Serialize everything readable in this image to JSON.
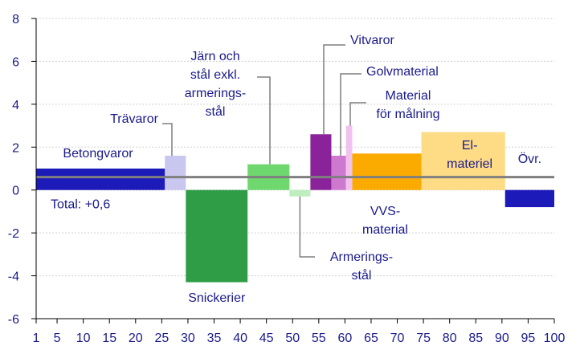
{
  "chart_data": {
    "type": "bar",
    "variable_width": true,
    "xlim": [
      1,
      100
    ],
    "ylim": [
      -6,
      8
    ],
    "x_ticks": [
      1,
      5,
      10,
      15,
      20,
      25,
      30,
      35,
      40,
      45,
      50,
      55,
      60,
      65,
      70,
      75,
      80,
      85,
      90,
      95,
      100
    ],
    "y_ticks": [
      -6,
      -4,
      -2,
      0,
      2,
      4,
      6,
      8
    ],
    "total_line": {
      "value": 0.6,
      "label": "Total: +0,6",
      "color": "#7f7f7f"
    },
    "series": [
      {
        "name": "Betongvaror",
        "lines": [
          "Betongvaror"
        ],
        "x_start": 1,
        "x_end": 25.6,
        "value": 1.0,
        "color": "#1c1ab8"
      },
      {
        "name": "Trävaror",
        "lines": [
          "Trävaror"
        ],
        "x_start": 25.6,
        "x_end": 29.6,
        "value": 1.6,
        "color": "#c9c6f0"
      },
      {
        "name": "Snickerier",
        "lines": [
          "Snickerier"
        ],
        "x_start": 29.6,
        "x_end": 41.4,
        "value": -4.3,
        "color": "#2f9c46"
      },
      {
        "name": "Järn och stål exkl. armeringsstål",
        "lines": [
          "Järn och",
          "stål exkl.",
          "armerings-",
          "stål"
        ],
        "x_start": 41.4,
        "x_end": 49.4,
        "value": 1.2,
        "color": "#6ed86e"
      },
      {
        "name": "Armeringsstål",
        "lines": [
          "Armerings-",
          "stål"
        ],
        "x_start": 49.4,
        "x_end": 53.4,
        "value": -0.3,
        "color": "#bfeebe"
      },
      {
        "name": "Vitvaror",
        "lines": [
          "Vitvaror"
        ],
        "x_start": 53.4,
        "x_end": 57.4,
        "value": 2.6,
        "color": "#8a2399"
      },
      {
        "name": "Golvmaterial",
        "lines": [
          "Golvmaterial"
        ],
        "x_start": 57.4,
        "x_end": 60.2,
        "value": 1.6,
        "color": "#cd79d0"
      },
      {
        "name": "Material för målning",
        "lines": [
          "Material",
          "för målning"
        ],
        "x_start": 60.2,
        "x_end": 61.4,
        "value": 3.0,
        "color": "#f2c2ee"
      },
      {
        "name": "VVS-material",
        "lines": [
          "VVS-",
          "material"
        ],
        "x_start": 61.4,
        "x_end": 74.6,
        "value": 1.7,
        "color": "#fbab00"
      },
      {
        "name": "El-materiel",
        "lines": [
          "El-",
          "materiel"
        ],
        "x_start": 74.6,
        "x_end": 90.6,
        "value": 2.7,
        "color": "#fedb85"
      },
      {
        "name": "Övr.",
        "lines": [
          "Övr."
        ],
        "x_start": 90.6,
        "x_end": 100,
        "value": -0.8,
        "color": "#1c1ab8"
      }
    ]
  }
}
